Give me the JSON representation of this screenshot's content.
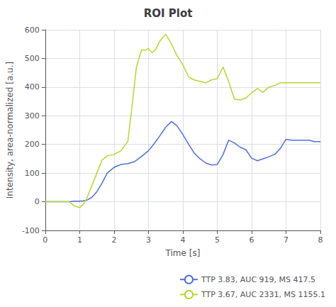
{
  "chart_data": {
    "type": "line",
    "title": "ROI Plot",
    "xlabel": "Time [s]",
    "ylabel": "Intensity, area-normalized [a.u.]",
    "xlim": [
      0,
      8
    ],
    "ylim": [
      -100,
      600
    ],
    "xticks": [
      0,
      1,
      2,
      3,
      4,
      5,
      6,
      7,
      8
    ],
    "yticks": [
      -100,
      0,
      100,
      200,
      300,
      400,
      500,
      600
    ],
    "grid": true,
    "legend": "lower right",
    "series": [
      {
        "name": "TTP 3.83, AUC 919, MS 417.5",
        "x": [
          0.0,
          0.7,
          0.85,
          1.0,
          1.1,
          1.2,
          1.35,
          1.5,
          1.65,
          1.8,
          2.0,
          2.2,
          2.4,
          2.6,
          2.8,
          3.0,
          3.15,
          3.33,
          3.5,
          3.67,
          3.83,
          4.0,
          4.17,
          4.33,
          4.5,
          4.67,
          4.83,
          5.0,
          5.17,
          5.33,
          5.5,
          5.67,
          5.83,
          6.0,
          6.17,
          6.33,
          6.5,
          6.67,
          6.83,
          7.0,
          7.17,
          7.33,
          7.5,
          7.67,
          7.83,
          8.0
        ],
        "values": [
          0.0,
          0.0,
          2.0,
          2.0,
          3.0,
          5.0,
          15.0,
          35.0,
          65.0,
          100.0,
          120.0,
          130.0,
          133.0,
          140.0,
          158.0,
          178.0,
          200.0,
          230.0,
          260.0,
          280.0,
          265.0,
          235.0,
          200.0,
          170.0,
          150.0,
          135.0,
          128.0,
          130.0,
          165.0,
          215.0,
          205.0,
          190.0,
          182.0,
          152.0,
          143.0,
          150.0,
          157.0,
          165.0,
          185.0,
          218.0,
          215.0,
          215.0,
          215.0,
          215.0,
          210.0,
          210.0
        ]
      },
      {
        "name": "TTP 3.67, AUC 2331, MS 1155.1",
        "x": [
          0.0,
          0.7,
          0.85,
          1.0,
          1.1,
          1.2,
          1.35,
          1.5,
          1.65,
          1.8,
          2.0,
          2.2,
          2.4,
          2.5,
          2.65,
          2.8,
          2.9,
          3.0,
          3.1,
          3.2,
          3.33,
          3.5,
          3.67,
          3.83,
          4.0,
          4.17,
          4.33,
          4.5,
          4.67,
          4.83,
          5.0,
          5.17,
          5.33,
          5.5,
          5.67,
          5.83,
          6.0,
          6.17,
          6.33,
          6.5,
          6.67,
          6.83,
          7.0,
          7.17,
          7.33,
          7.5,
          7.67,
          7.83,
          8.0
        ],
        "values": [
          0.0,
          0.0,
          -15.0,
          -20.0,
          -10.0,
          10.0,
          55.0,
          100.0,
          145.0,
          160.0,
          165.0,
          178.0,
          210.0,
          310.0,
          470.0,
          530.0,
          528.0,
          535.0,
          520.0,
          530.0,
          560.0,
          585.0,
          550.0,
          510.0,
          478.0,
          435.0,
          425.0,
          420.0,
          415.0,
          425.0,
          430.0,
          470.0,
          420.0,
          358.0,
          355.0,
          362.0,
          380.0,
          395.0,
          382.0,
          400.0,
          405.0,
          415.0,
          415.0,
          415.0,
          415.0,
          415.0,
          415.0,
          415.0,
          415.0
        ]
      }
    ]
  }
}
